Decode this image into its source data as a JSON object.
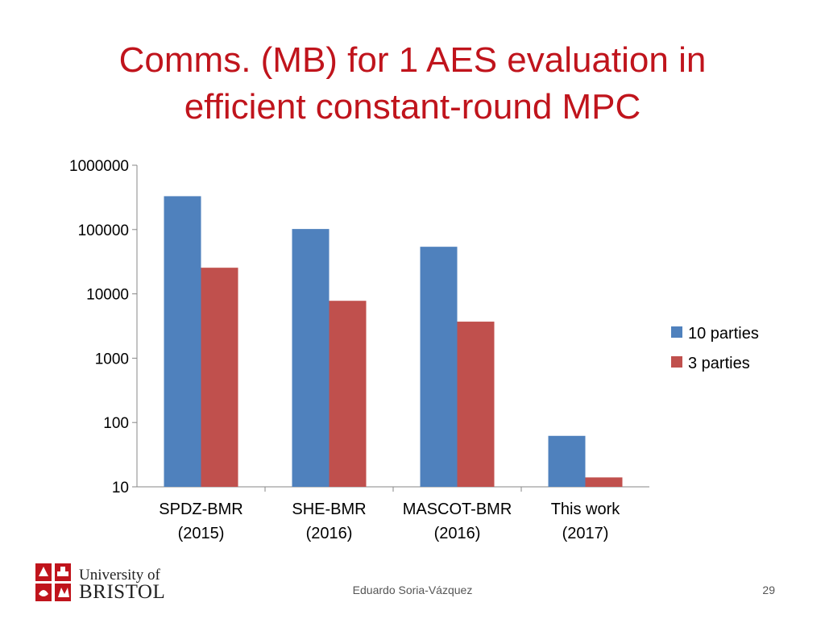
{
  "slide": {
    "title_line1": "Comms. (MB) for 1 AES evaluation in",
    "title_line2": "efficient constant-round MPC",
    "author": "Eduardo Soria-Vázquez",
    "page_number": "29",
    "logo": {
      "line1": "University of",
      "line2": "BRISTOL"
    }
  },
  "chart_data": {
    "type": "bar",
    "scale": "log",
    "ylim": [
      10,
      1000000
    ],
    "y_ticks": [
      "10",
      "100",
      "1000",
      "10000",
      "100000",
      "1000000"
    ],
    "categories": [
      [
        "SPDZ-BMR",
        "(2015)"
      ],
      [
        "SHE-BMR",
        "(2016)"
      ],
      [
        "MASCOT-BMR",
        "(2016)"
      ],
      [
        "This work",
        "(2017)"
      ]
    ],
    "series": [
      {
        "name": "10 parties",
        "color": "#4f81bd",
        "values": [
          330000,
          102000,
          54000,
          62
        ]
      },
      {
        "name": "3 parties",
        "color": "#c0504d",
        "values": [
          25500,
          7800,
          3700,
          14
        ]
      }
    ],
    "legend_position": "right",
    "grid": false
  }
}
